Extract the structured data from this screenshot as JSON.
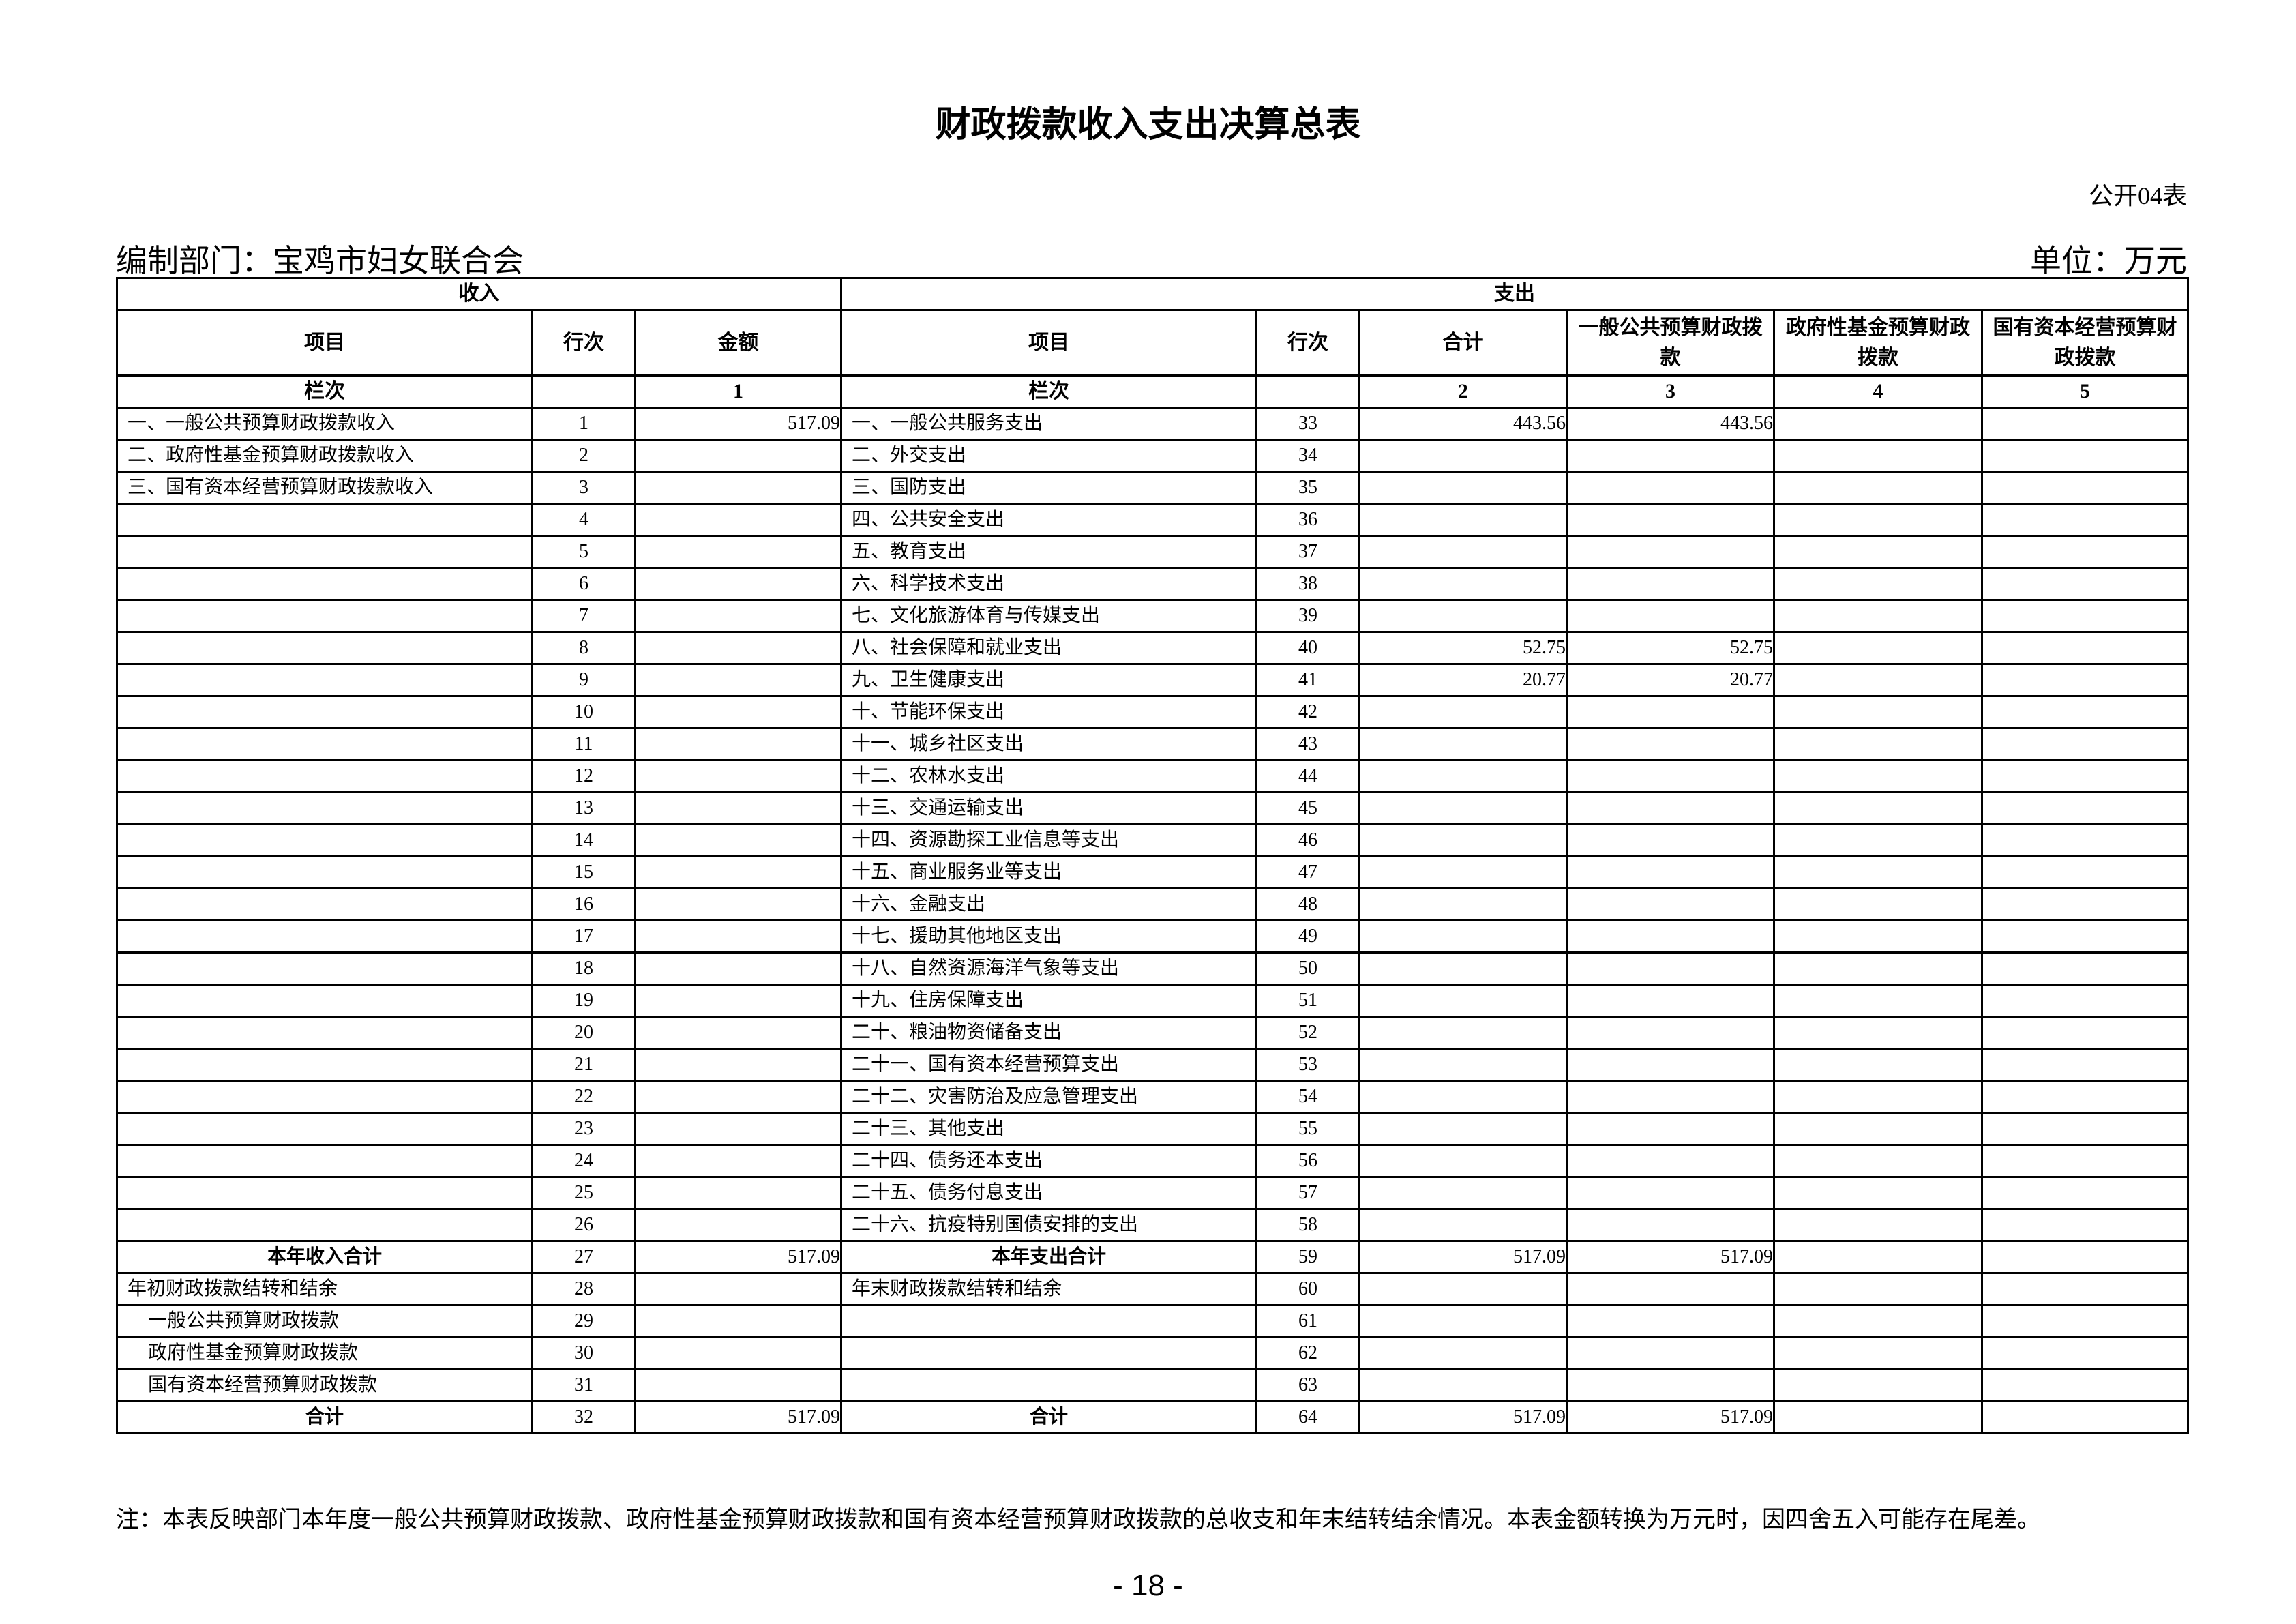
{
  "title": "财政拨款收入支出决算总表",
  "form_no": "公开04表",
  "department": "编制部门：宝鸡市妇女联合会",
  "unit": "单位：万元",
  "table": {
    "income_header": "收入",
    "expense_header": "支出",
    "columns": [
      "项目",
      "行次",
      "金额",
      "项目",
      "行次",
      "合计",
      "一般公共预算财政拨款",
      "政府性基金预算财政拨款",
      "国有资本经营预算财政拨款"
    ],
    "column_index_row": [
      "栏次",
      "",
      "1",
      "栏次",
      "",
      "2",
      "3",
      "4",
      "5"
    ],
    "rows": [
      [
        "一、一般公共预算财政拨款收入",
        "1",
        "517.09",
        "一、一般公共服务支出",
        "33",
        "443.56",
        "443.56",
        "",
        ""
      ],
      [
        "二、政府性基金预算财政拨款收入",
        "2",
        "",
        "二、外交支出",
        "34",
        "",
        "",
        "",
        ""
      ],
      [
        "三、国有资本经营预算财政拨款收入",
        "3",
        "",
        "三、国防支出",
        "35",
        "",
        "",
        "",
        ""
      ],
      [
        "",
        "4",
        "",
        "四、公共安全支出",
        "36",
        "",
        "",
        "",
        ""
      ],
      [
        "",
        "5",
        "",
        "五、教育支出",
        "37",
        "",
        "",
        "",
        ""
      ],
      [
        "",
        "6",
        "",
        "六、科学技术支出",
        "38",
        "",
        "",
        "",
        ""
      ],
      [
        "",
        "7",
        "",
        "七、文化旅游体育与传媒支出",
        "39",
        "",
        "",
        "",
        ""
      ],
      [
        "",
        "8",
        "",
        "八、社会保障和就业支出",
        "40",
        "52.75",
        "52.75",
        "",
        ""
      ],
      [
        "",
        "9",
        "",
        "九、卫生健康支出",
        "41",
        "20.77",
        "20.77",
        "",
        ""
      ],
      [
        "",
        "10",
        "",
        "十、节能环保支出",
        "42",
        "",
        "",
        "",
        ""
      ],
      [
        "",
        "11",
        "",
        "十一、城乡社区支出",
        "43",
        "",
        "",
        "",
        ""
      ],
      [
        "",
        "12",
        "",
        "十二、农林水支出",
        "44",
        "",
        "",
        "",
        ""
      ],
      [
        "",
        "13",
        "",
        "十三、交通运输支出",
        "45",
        "",
        "",
        "",
        ""
      ],
      [
        "",
        "14",
        "",
        "十四、资源勘探工业信息等支出",
        "46",
        "",
        "",
        "",
        ""
      ],
      [
        "",
        "15",
        "",
        "十五、商业服务业等支出",
        "47",
        "",
        "",
        "",
        ""
      ],
      [
        "",
        "16",
        "",
        "十六、金融支出",
        "48",
        "",
        "",
        "",
        ""
      ],
      [
        "",
        "17",
        "",
        "十七、援助其他地区支出",
        "49",
        "",
        "",
        "",
        ""
      ],
      [
        "",
        "18",
        "",
        "十八、自然资源海洋气象等支出",
        "50",
        "",
        "",
        "",
        ""
      ],
      [
        "",
        "19",
        "",
        "十九、住房保障支出",
        "51",
        "",
        "",
        "",
        ""
      ],
      [
        "",
        "20",
        "",
        "二十、粮油物资储备支出",
        "52",
        "",
        "",
        "",
        ""
      ],
      [
        "",
        "21",
        "",
        "二十一、国有资本经营预算支出",
        "53",
        "",
        "",
        "",
        ""
      ],
      [
        "",
        "22",
        "",
        "二十二、灾害防治及应急管理支出",
        "54",
        "",
        "",
        "",
        ""
      ],
      [
        "",
        "23",
        "",
        "二十三、其他支出",
        "55",
        "",
        "",
        "",
        ""
      ],
      [
        "",
        "24",
        "",
        "二十四、债务还本支出",
        "56",
        "",
        "",
        "",
        ""
      ],
      [
        "",
        "25",
        "",
        "二十五、债务付息支出",
        "57",
        "",
        "",
        "",
        ""
      ],
      [
        "",
        "26",
        "",
        "二十六、抗疫特别国债安排的支出",
        "58",
        "",
        "",
        "",
        ""
      ],
      [
        "本年收入合计",
        "27",
        "517.09",
        "本年支出合计",
        "59",
        "517.09",
        "517.09",
        "",
        ""
      ],
      [
        "年初财政拨款结转和结余",
        "28",
        "",
        "年末财政拨款结转和结余",
        "60",
        "",
        "",
        "",
        ""
      ],
      [
        "一般公共预算财政拨款",
        "29",
        "",
        "",
        "61",
        "",
        "",
        "",
        ""
      ],
      [
        "政府性基金预算财政拨款",
        "30",
        "",
        "",
        "62",
        "",
        "",
        "",
        ""
      ],
      [
        "国有资本经营预算财政拨款",
        "31",
        "",
        "",
        "63",
        "",
        "",
        "",
        ""
      ],
      [
        "合计",
        "32",
        "517.09",
        "合计",
        "64",
        "517.09",
        "517.09",
        "",
        ""
      ]
    ],
    "bold_rows": [
      26,
      31
    ],
    "indented_rows": [
      28,
      29,
      30
    ]
  },
  "note": "注：本表反映部门本年度一般公共预算财政拨款、政府性基金预算财政拨款和国有资本经营预算财政拨款的总收支和年末结转结余情况。本表金额转换为万元时，因四舍五入可能存在尾差。",
  "page_number": "- 18 -"
}
